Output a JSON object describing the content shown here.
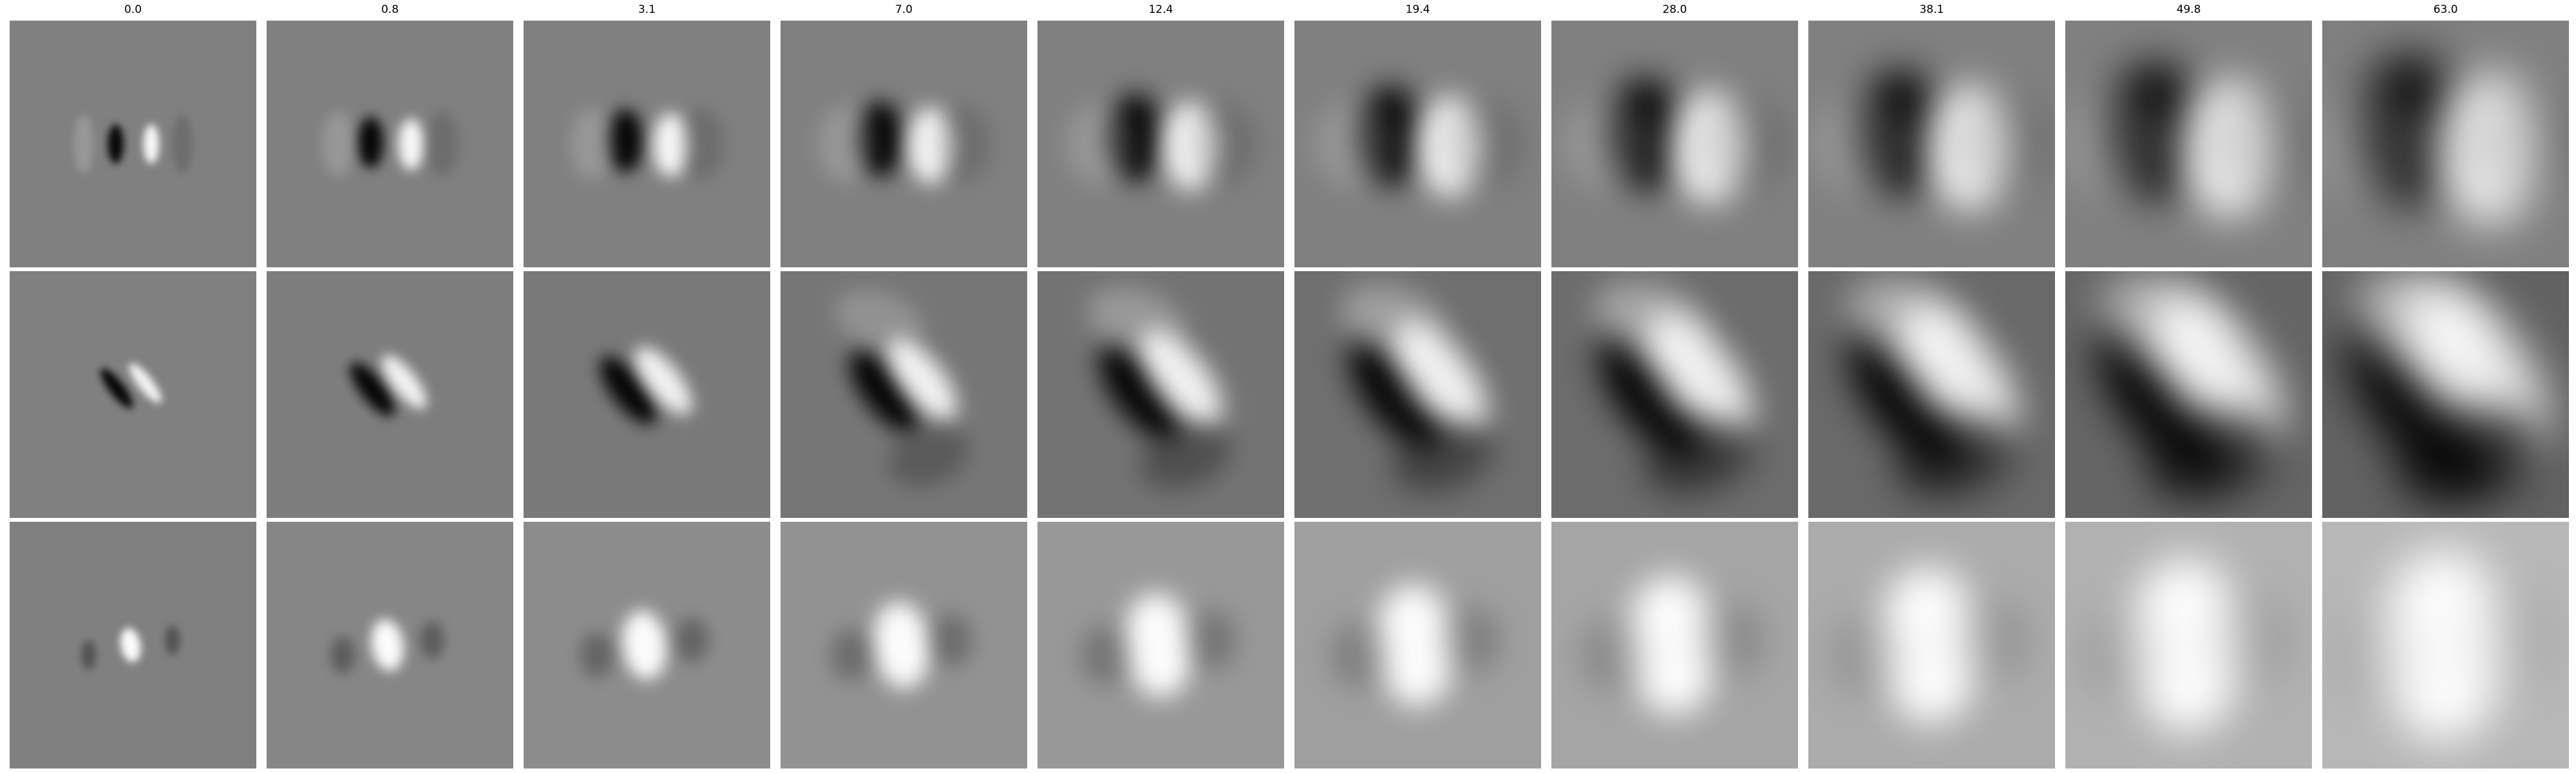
{
  "figure": {
    "column_titles": [
      "0.0",
      "0.8",
      "3.1",
      "7.0",
      "12.4",
      "19.4",
      "28.0",
      "38.1",
      "49.8",
      "63.0"
    ],
    "rows": 3,
    "colormap": "grayscale",
    "background_color": "#ffffff",
    "panel_base_color": "#808080"
  }
}
